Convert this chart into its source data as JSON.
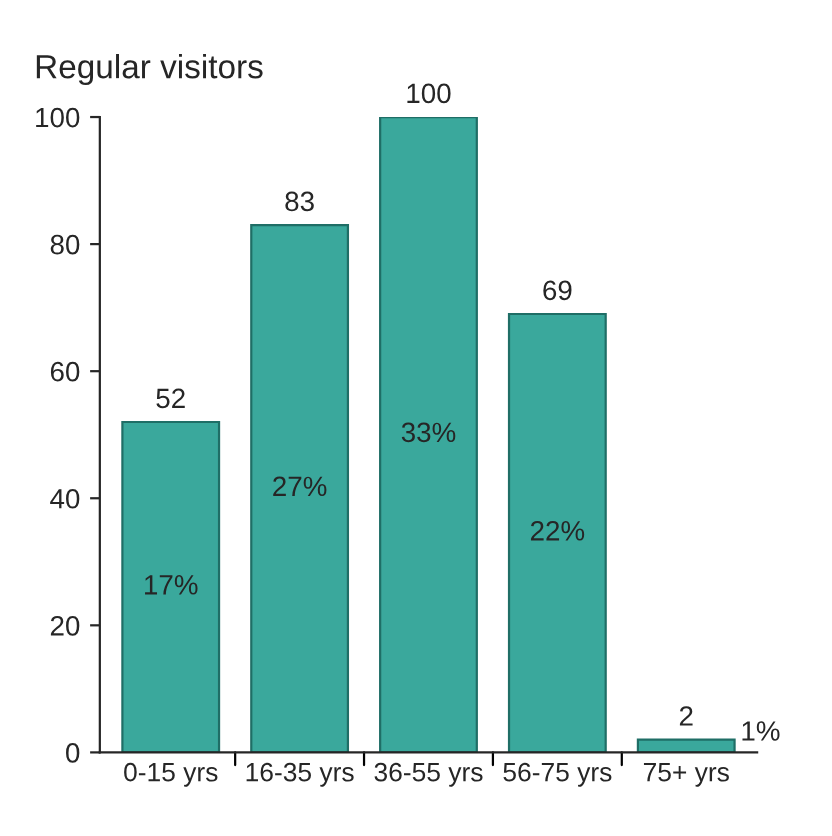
{
  "chart_data": {
    "type": "bar",
    "title": "Regular visitors",
    "categories": [
      "0-15 yrs",
      "16-35 yrs",
      "36-55 yrs",
      "56-75 yrs",
      "75+ yrs"
    ],
    "values": [
      52,
      83,
      100,
      69,
      2
    ],
    "color": "#3aa89c",
    "data_labels": true,
    "ylim": [
      0,
      100
    ],
    "yticks": [
      0,
      20,
      40,
      60,
      80,
      100
    ],
    "grid": false,
    "annotations": [
      "17%",
      "27%",
      "33%",
      "22%",
      "1%"
    ]
  }
}
